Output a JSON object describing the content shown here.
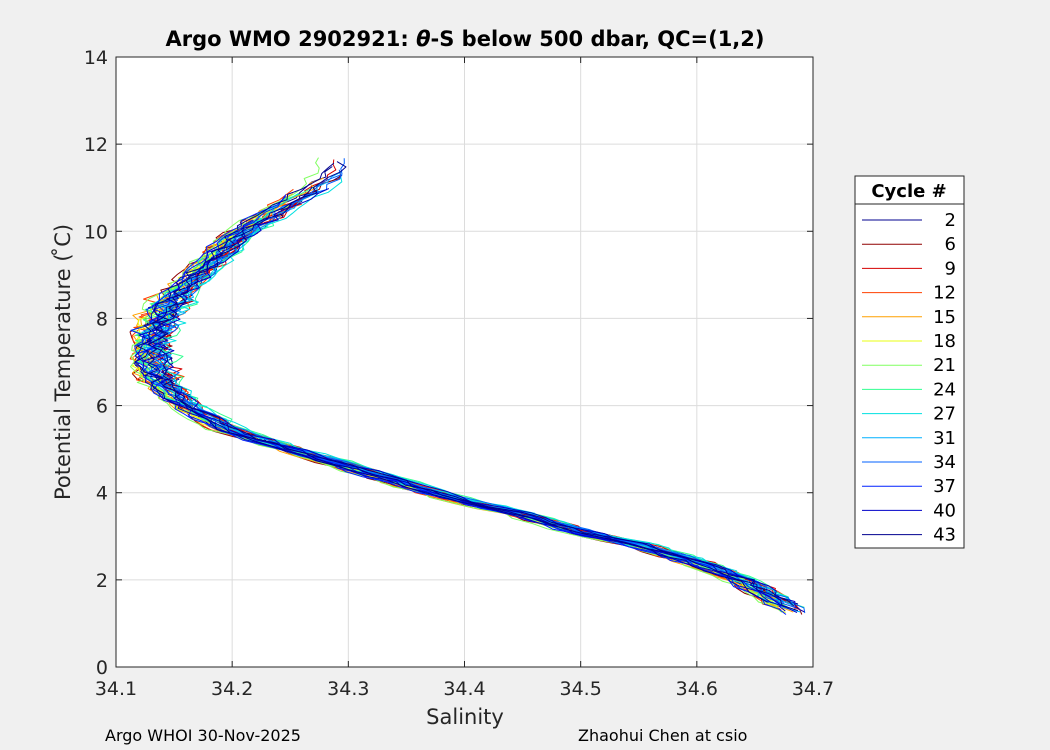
{
  "chart_data": {
    "type": "line",
    "title_prefix": "Argo WMO 2902921: ",
    "title_theta": "θ",
    "title_suffix": "-S below 500 dbar,  QC=(1,2)",
    "xlabel": "Salinity",
    "ylabel": "Potential Temperature ( ̊C)",
    "xlim": [
      34.1,
      34.7
    ],
    "ylim": [
      0,
      14
    ],
    "xticks": [
      "34.1",
      "34.2",
      "34.3",
      "34.4",
      "34.5",
      "34.6",
      "34.7"
    ],
    "yticks": [
      "0",
      "2",
      "4",
      "6",
      "8",
      "10",
      "12",
      "14"
    ],
    "grid": true,
    "legend": {
      "title": "Cycle #",
      "position": "right",
      "entries": [
        {
          "label": "2",
          "color": "#00008f"
        },
        {
          "label": "6",
          "color": "#8f0000"
        },
        {
          "label": "9",
          "color": "#d40000"
        },
        {
          "label": "12",
          "color": "#ff4000"
        },
        {
          "label": "15",
          "color": "#ffa000"
        },
        {
          "label": "18",
          "color": "#e8ff10"
        },
        {
          "label": "21",
          "color": "#80ff60"
        },
        {
          "label": "24",
          "color": "#30ff90"
        },
        {
          "label": "27",
          "color": "#00e0e0"
        },
        {
          "label": "31",
          "color": "#00b0ff"
        },
        {
          "label": "34",
          "color": "#0060ff"
        },
        {
          "label": "37",
          "color": "#0020ff"
        },
        {
          "label": "40",
          "color": "#0000c8"
        },
        {
          "label": "43",
          "color": "#00008f"
        }
      ]
    },
    "reference_curve": [
      [
        34.69,
        1.2
      ],
      [
        34.67,
        1.5
      ],
      [
        34.64,
        2.0
      ],
      [
        34.6,
        2.4
      ],
      [
        34.55,
        2.8
      ],
      [
        34.5,
        3.1
      ],
      [
        34.45,
        3.5
      ],
      [
        34.4,
        3.8
      ],
      [
        34.35,
        4.2
      ],
      [
        34.3,
        4.6
      ],
      [
        34.25,
        5.0
      ],
      [
        34.2,
        5.4
      ],
      [
        34.16,
        6.0
      ],
      [
        34.14,
        6.5
      ],
      [
        34.13,
        7.0
      ],
      [
        34.13,
        7.5
      ],
      [
        34.14,
        8.0
      ],
      [
        34.15,
        8.5
      ],
      [
        34.17,
        9.0
      ],
      [
        34.19,
        9.5
      ],
      [
        34.21,
        10.0
      ],
      [
        34.24,
        10.5
      ],
      [
        34.27,
        11.0
      ],
      [
        34.29,
        11.4
      ]
    ]
  },
  "footer": {
    "left": "Argo WHOI 30-Nov-2025",
    "right": "Zhaohui Chen at csio"
  }
}
